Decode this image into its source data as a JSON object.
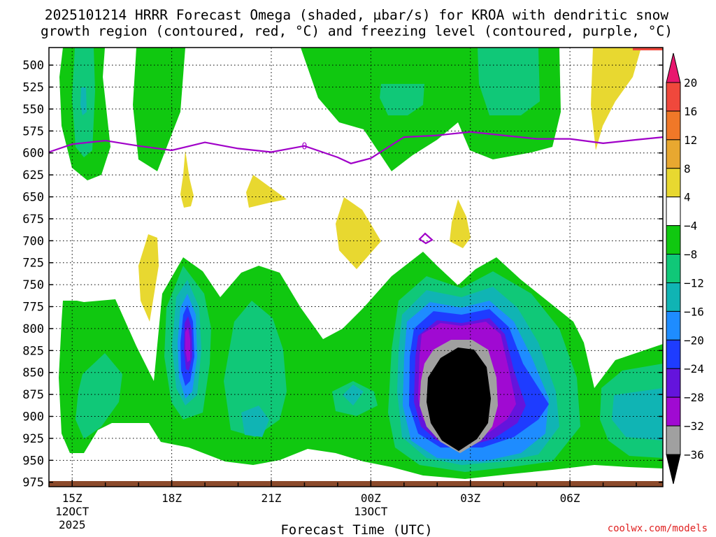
{
  "chart_data": {
    "type": "heatmap",
    "title_line1": "2025101214 HRRR Forecast Omega (shaded, µbar/s) for KROA with dendritic snow",
    "title_line2": "growth region (contoured, red, °C) and freezing level (contoured, purple, °C)",
    "xlabel": "Forecast Time (UTC)",
    "credit": "coolwx.com/models",
    "x_range_hours": [
      14.3,
      32.8
    ],
    "y_range_hPa": [
      480,
      980
    ],
    "y_ticks": [
      500,
      525,
      550,
      575,
      600,
      625,
      650,
      675,
      700,
      725,
      750,
      775,
      800,
      825,
      850,
      875,
      900,
      925,
      950,
      975
    ],
    "x_ticks": [
      {
        "hour": 15,
        "label": "15Z",
        "sub1": "12OCT",
        "sub2": "2025"
      },
      {
        "hour": 18,
        "label": "18Z",
        "sub1": "",
        "sub2": ""
      },
      {
        "hour": 21,
        "label": "21Z",
        "sub1": "",
        "sub2": ""
      },
      {
        "hour": 24,
        "label": "00Z",
        "sub1": "13OCT",
        "sub2": ""
      },
      {
        "hour": 27,
        "label": "03Z",
        "sub1": "",
        "sub2": ""
      },
      {
        "hour": 30,
        "label": "06Z",
        "sub1": "",
        "sub2": ""
      }
    ],
    "colorbar": {
      "levels": [
        {
          "from": 20,
          "to": 24,
          "color": "#e8176e"
        },
        {
          "from": 16,
          "to": 20,
          "color": "#f0483c"
        },
        {
          "from": 12,
          "to": 16,
          "color": "#f07828"
        },
        {
          "from": 8,
          "to": 12,
          "color": "#e8a830"
        },
        {
          "from": 4,
          "to": 8,
          "color": "#e8d830"
        },
        {
          "from": -4,
          "to": 4,
          "color": "#ffffff"
        },
        {
          "from": -8,
          "to": -4,
          "color": "#10c810"
        },
        {
          "from": -12,
          "to": -8,
          "color": "#10c878"
        },
        {
          "from": -16,
          "to": -12,
          "color": "#10b4b4"
        },
        {
          "from": -20,
          "to": -16,
          "color": "#1e8cff"
        },
        {
          "from": -24,
          "to": -20,
          "color": "#1e3cff"
        },
        {
          "from": -28,
          "to": -24,
          "color": "#6414dc"
        },
        {
          "from": -32,
          "to": -28,
          "color": "#a00ad2"
        },
        {
          "from": -36,
          "to": -32,
          "color": "#a0a0a0"
        },
        {
          "from": -40,
          "to": -36,
          "color": "#000000"
        }
      ],
      "tick_labels": [
        "20",
        "16",
        "12",
        "8",
        "4",
        "−4",
        "−8",
        "−12",
        "−16",
        "−20",
        "−24",
        "−28",
        "−32",
        "−36"
      ]
    },
    "freezing_level_label": "0",
    "freezing_level_hPa": [
      [
        14.3,
        599
      ],
      [
        15.0,
        590
      ],
      [
        16.0,
        586
      ],
      [
        17.0,
        592
      ],
      [
        18.0,
        597
      ],
      [
        19.0,
        588
      ],
      [
        20.0,
        595
      ],
      [
        21.0,
        599
      ],
      [
        22.0,
        592
      ],
      [
        23.0,
        605
      ],
      [
        23.4,
        612
      ],
      [
        24.0,
        606
      ],
      [
        25.0,
        582
      ],
      [
        26.0,
        580
      ],
      [
        27.0,
        576
      ],
      [
        28.0,
        580
      ],
      [
        29.0,
        584
      ],
      [
        30.0,
        584
      ],
      [
        31.0,
        589
      ],
      [
        32.0,
        585
      ],
      [
        32.8,
        582
      ]
    ],
    "omega_features": [
      {
        "name": "lower-ascent-core",
        "level": "-40 to -36",
        "center_hour": 25.9,
        "center_hPa": 855,
        "peak": -38
      },
      {
        "name": "lower-ascent-18Z",
        "level": "-28 to -24",
        "center_hour": 18.0,
        "center_hPa": 785,
        "peak": -26
      },
      {
        "name": "upper-ascent-15Z",
        "level": "-16 to -12",
        "center_hour": 15.0,
        "center_hPa": 530,
        "peak": -14
      },
      {
        "name": "upper-ascent-03Z",
        "level": "-12 to -8",
        "center_hour": 27.0,
        "center_hPa": 525,
        "peak": -10
      },
      {
        "name": "descent-07Z",
        "level": "4 to 8",
        "center_hour": 31.0,
        "center_hPa": 530,
        "peak": 6
      }
    ]
  }
}
